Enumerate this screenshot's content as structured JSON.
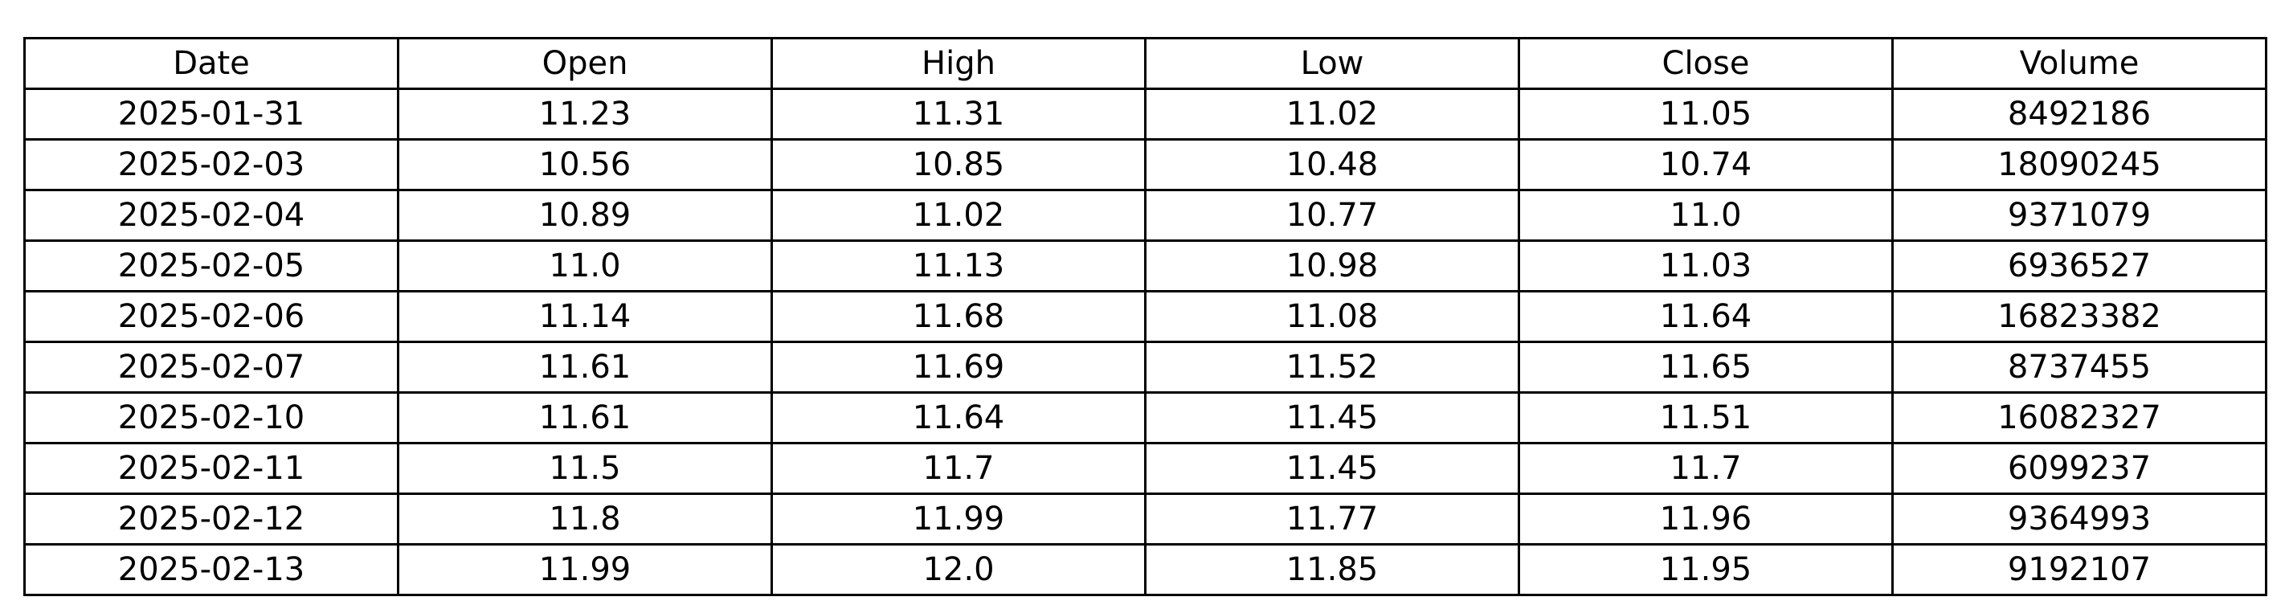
{
  "chart_data": {
    "type": "table",
    "columns": [
      "Date",
      "Open",
      "High",
      "Low",
      "Close",
      "Volume"
    ],
    "rows": [
      [
        "2025-01-31",
        "11.23",
        "11.31",
        "11.02",
        "11.05",
        "8492186"
      ],
      [
        "2025-02-03",
        "10.56",
        "10.85",
        "10.48",
        "10.74",
        "18090245"
      ],
      [
        "2025-02-04",
        "10.89",
        "11.02",
        "10.77",
        "11.0",
        "9371079"
      ],
      [
        "2025-02-05",
        "11.0",
        "11.13",
        "10.98",
        "11.03",
        "6936527"
      ],
      [
        "2025-02-06",
        "11.14",
        "11.68",
        "11.08",
        "11.64",
        "16823382"
      ],
      [
        "2025-02-07",
        "11.61",
        "11.69",
        "11.52",
        "11.65",
        "8737455"
      ],
      [
        "2025-02-10",
        "11.61",
        "11.64",
        "11.45",
        "11.51",
        "16082327"
      ],
      [
        "2025-02-11",
        "11.5",
        "11.7",
        "11.45",
        "11.7",
        "6099237"
      ],
      [
        "2025-02-12",
        "11.8",
        "11.99",
        "11.77",
        "11.96",
        "9364993"
      ],
      [
        "2025-02-13",
        "11.99",
        "12.0",
        "11.85",
        "11.95",
        "9192107"
      ]
    ]
  }
}
